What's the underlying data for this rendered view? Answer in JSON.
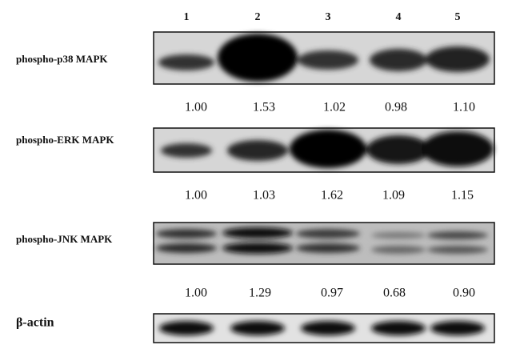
{
  "lanes": [
    "1",
    "2",
    "3",
    "4",
    "5"
  ],
  "rows": [
    {
      "label": "phospho-p38 MAPK",
      "values": [
        "1.00",
        "1.53",
        "1.02",
        "0.98",
        "1.10"
      ]
    },
    {
      "label": "phospho-ERK MAPK",
      "values": [
        "1.00",
        "1.03",
        "1.62",
        "1.09",
        "1.15"
      ]
    },
    {
      "label": "phospho-JNK MAPK",
      "values": [
        "1.00",
        "1.29",
        "0.97",
        "0.68",
        "0.90"
      ]
    }
  ],
  "loading_control": {
    "label": "β-actin"
  }
}
